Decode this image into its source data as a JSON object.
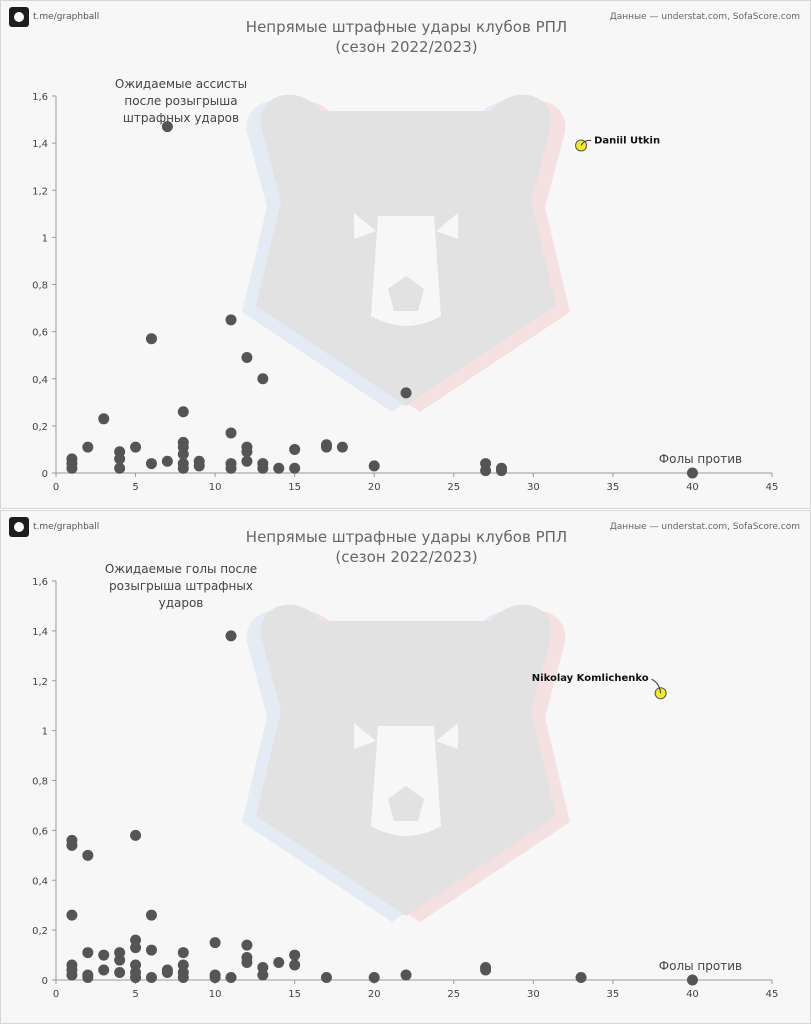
{
  "brand": {
    "handle": "t.me/graphball",
    "logo_icon": "football-icon"
  },
  "source": "Данные — understat.com, SofaScore.com",
  "chart_data": [
    {
      "type": "scatter",
      "title_line1": "Непрямые штрафные удары клубов РПЛ",
      "title_line2": "(сезон 2022/2023)",
      "ylabel_lines": [
        "Ожидаемые ассисты",
        "после розыгрыша",
        "штрафных ударов"
      ],
      "xlabel": "Фолы против",
      "xlim": [
        0,
        45
      ],
      "ylim": [
        0,
        1.6
      ],
      "xticks": [
        "0",
        "5",
        "10",
        "15",
        "20",
        "25",
        "30",
        "35",
        "40",
        "45"
      ],
      "yticks": [
        "0",
        "0,2",
        "0,4",
        "0,6",
        "0,8",
        "1",
        "1,2",
        "1,4",
        "1,6"
      ],
      "highlight": {
        "label": "Daniil Utkin",
        "x": 33,
        "y": 1.39,
        "color": "#f2ea2a"
      },
      "points": [
        [
          1,
          0.06
        ],
        [
          1,
          0.04
        ],
        [
          1,
          0.02
        ],
        [
          2,
          0.11
        ],
        [
          3,
          0.23
        ],
        [
          4,
          0.09
        ],
        [
          4,
          0.06
        ],
        [
          4,
          0.02
        ],
        [
          5,
          0.11
        ],
        [
          6,
          0.57
        ],
        [
          6,
          0.04
        ],
        [
          7,
          1.47
        ],
        [
          7,
          0.05
        ],
        [
          8,
          0.26
        ],
        [
          8,
          0.13
        ],
        [
          8,
          0.11
        ],
        [
          8,
          0.08
        ],
        [
          8,
          0.04
        ],
        [
          8,
          0.02
        ],
        [
          9,
          0.05
        ],
        [
          9,
          0.03
        ],
        [
          11,
          0.65
        ],
        [
          11,
          0.17
        ],
        [
          11,
          0.04
        ],
        [
          11,
          0.02
        ],
        [
          12,
          0.49
        ],
        [
          12,
          0.11
        ],
        [
          12,
          0.09
        ],
        [
          12,
          0.05
        ],
        [
          13,
          0.4
        ],
        [
          13,
          0.04
        ],
        [
          13,
          0.02
        ],
        [
          14,
          0.02
        ],
        [
          15,
          0.1
        ],
        [
          15,
          0.02
        ],
        [
          17,
          0.12
        ],
        [
          17,
          0.11
        ],
        [
          18,
          0.11
        ],
        [
          20,
          0.03
        ],
        [
          22,
          0.34
        ],
        [
          27,
          0.04
        ],
        [
          27,
          0.01
        ],
        [
          28,
          0.02
        ],
        [
          28,
          0.01
        ],
        [
          40,
          0
        ]
      ]
    },
    {
      "type": "scatter",
      "title_line1": "Непрямые штрафные удары клубов РПЛ",
      "title_line2": "(сезон 2022/2023)",
      "ylabel_lines": [
        "Ожидаемые голы после",
        "розыгрыша штрафных",
        "ударов"
      ],
      "xlabel": "Фолы против",
      "xlim": [
        0,
        45
      ],
      "ylim": [
        0,
        1.6
      ],
      "xticks": [
        "0",
        "5",
        "10",
        "15",
        "20",
        "25",
        "30",
        "35",
        "40",
        "45"
      ],
      "yticks": [
        "0",
        "0,2",
        "0,4",
        "0,6",
        "0,8",
        "1",
        "1,2",
        "1,4",
        "1,6"
      ],
      "highlight": {
        "label": "Nikolay Komlichenko",
        "x": 38,
        "y": 1.15,
        "color": "#f2ea2a"
      },
      "points": [
        [
          1,
          0.56
        ],
        [
          1,
          0.54
        ],
        [
          1,
          0.26
        ],
        [
          1,
          0.06
        ],
        [
          1,
          0.04
        ],
        [
          1,
          0.02
        ],
        [
          2,
          0.5
        ],
        [
          2,
          0.11
        ],
        [
          2,
          0.02
        ],
        [
          2,
          0.01
        ],
        [
          3,
          0.1
        ],
        [
          3,
          0.04
        ],
        [
          4,
          0.11
        ],
        [
          4,
          0.08
        ],
        [
          4,
          0.03
        ],
        [
          5,
          0.58
        ],
        [
          5,
          0.16
        ],
        [
          5,
          0.13
        ],
        [
          5,
          0.06
        ],
        [
          5,
          0.03
        ],
        [
          5,
          0.01
        ],
        [
          6,
          0.26
        ],
        [
          6,
          0.12
        ],
        [
          6,
          0.01
        ],
        [
          7,
          0.04
        ],
        [
          7,
          0.03
        ],
        [
          8,
          0.11
        ],
        [
          8,
          0.06
        ],
        [
          8,
          0.03
        ],
        [
          8,
          0.01
        ],
        [
          10,
          0.15
        ],
        [
          10,
          0.02
        ],
        [
          10,
          0.01
        ],
        [
          11,
          1.38
        ],
        [
          11,
          0.01
        ],
        [
          12,
          0.14
        ],
        [
          12,
          0.09
        ],
        [
          12,
          0.07
        ],
        [
          13,
          0.05
        ],
        [
          13,
          0.02
        ],
        [
          14,
          0.07
        ],
        [
          15,
          0.1
        ],
        [
          15,
          0.06
        ],
        [
          17,
          0.01
        ],
        [
          20,
          0.01
        ],
        [
          22,
          0.02
        ],
        [
          27,
          0.05
        ],
        [
          27,
          0.04
        ],
        [
          33,
          0.01
        ],
        [
          40,
          0
        ]
      ]
    }
  ]
}
